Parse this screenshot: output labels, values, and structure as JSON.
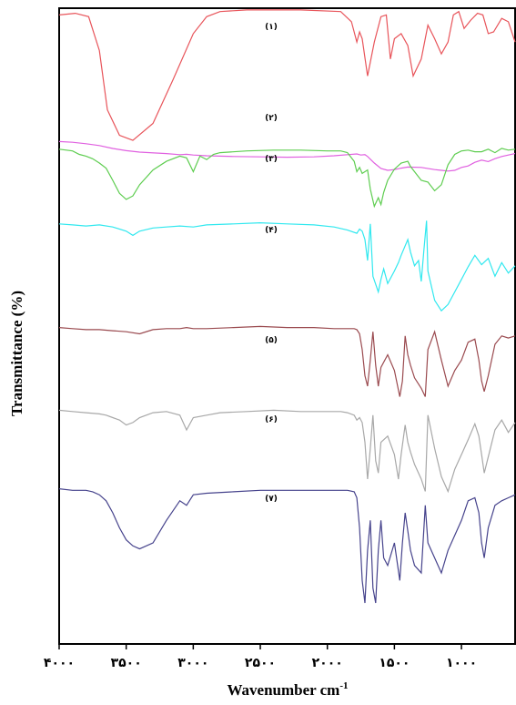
{
  "chart_data": {
    "type": "line",
    "title": "",
    "xlabel": "Wavenumber cm",
    "xlabel_sup": "-1",
    "ylabel": "Transmittance (%)",
    "xlim": [
      4000,
      600
    ],
    "x_reversed": true,
    "x_ticks": [
      {
        "value": 4000,
        "label": "۴۰۰۰"
      },
      {
        "value": 3500,
        "label": "۳۵۰۰"
      },
      {
        "value": 3000,
        "label": "۳۰۰۰"
      },
      {
        "value": 2500,
        "label": "۲۵۰۰"
      },
      {
        "value": 2000,
        "label": "۲۰۰۰"
      },
      {
        "value": 1500,
        "label": "۱۵۰۰"
      },
      {
        "value": 1000,
        "label": "۱۰۰۰"
      }
    ],
    "y_ticks_shown": false,
    "grid": false,
    "series": [
      {
        "name": "(۱)",
        "color": "#e8545a",
        "x": [
          4000,
          3880,
          3780,
          3700,
          3640,
          3550,
          3450,
          3300,
          3150,
          3000,
          2900,
          2800,
          2600,
          2200,
          1900,
          1820,
          1780,
          1760,
          1740,
          1700,
          1650,
          1600,
          1560,
          1530,
          1500,
          1450,
          1400,
          1360,
          1300,
          1250,
          1200,
          1150,
          1100,
          1060,
          1020,
          980,
          930,
          880,
          840,
          800,
          760,
          700,
          650,
          600
        ],
        "y": [
          96,
          97,
          95,
          75,
          40,
          25,
          22,
          32,
          58,
          85,
          95,
          98,
          99,
          99,
          98,
          92,
          80,
          86,
          82,
          60,
          80,
          95,
          96,
          70,
          82,
          85,
          78,
          60,
          70,
          90,
          82,
          73,
          80,
          96,
          98,
          88,
          93,
          97,
          96,
          85,
          86,
          94,
          92,
          80
        ]
      },
      {
        "name": "(۲)",
        "color": "#e060e0",
        "x": [
          4000,
          3900,
          3800,
          3700,
          3600,
          3500,
          3400,
          3200,
          3100,
          3050,
          3000,
          2900,
          2700,
          2500,
          2300,
          2100,
          1950,
          1850,
          1780,
          1750,
          1720,
          1700,
          1650,
          1600,
          1550,
          1500,
          1450,
          1400,
          1300,
          1200,
          1150,
          1100,
          1050,
          1000,
          950,
          900,
          850,
          800,
          750,
          700,
          650,
          600
        ],
        "y": [
          99,
          97,
          93,
          88,
          80,
          74,
          70,
          66,
          63,
          64,
          62,
          60,
          58,
          57,
          56,
          57,
          60,
          63,
          65,
          62,
          63,
          58,
          40,
          25,
          20,
          22,
          26,
          29,
          28,
          22,
          20,
          18,
          20,
          28,
          32,
          42,
          48,
          44,
          52,
          58,
          62,
          66
        ]
      },
      {
        "name": "(۳)",
        "color": "#5ecd50",
        "x": [
          4000,
          3900,
          3850,
          3800,
          3750,
          3700,
          3650,
          3600,
          3550,
          3500,
          3450,
          3400,
          3300,
          3200,
          3100,
          3050,
          3000,
          2950,
          2900,
          2850,
          2800,
          2600,
          2400,
          2200,
          2000,
          1900,
          1850,
          1800,
          1780,
          1760,
          1740,
          1700,
          1680,
          1650,
          1620,
          1600,
          1580,
          1550,
          1500,
          1450,
          1400,
          1380,
          1350,
          1300,
          1250,
          1200,
          1150,
          1100,
          1050,
          1000,
          950,
          900,
          850,
          800,
          750,
          700,
          650,
          600
        ],
        "y": [
          96,
          94,
          90,
          88,
          85,
          80,
          74,
          60,
          45,
          38,
          42,
          55,
          72,
          82,
          88,
          86,
          70,
          88,
          84,
          90,
          92,
          94,
          95,
          95,
          94,
          94,
          92,
          82,
          70,
          75,
          68,
          72,
          50,
          30,
          40,
          32,
          46,
          60,
          73,
          80,
          82,
          76,
          70,
          60,
          58,
          48,
          55,
          78,
          90,
          94,
          95,
          93,
          93,
          96,
          92,
          97,
          95,
          96
        ]
      },
      {
        "name": "(۴)",
        "color": "#30e8ef",
        "x": [
          4000,
          3900,
          3800,
          3700,
          3600,
          3500,
          3450,
          3400,
          3300,
          3200,
          3100,
          3000,
          2900,
          2700,
          2500,
          2300,
          2100,
          1950,
          1850,
          1780,
          1760,
          1740,
          1720,
          1700,
          1680,
          1660,
          1620,
          1600,
          1580,
          1550,
          1500,
          1470,
          1450,
          1400,
          1380,
          1350,
          1320,
          1300,
          1280,
          1260,
          1250,
          1200,
          1150,
          1100,
          1050,
          1000,
          950,
          900,
          850,
          800,
          750,
          700,
          650,
          600
        ],
        "y": [
          95,
          94,
          93,
          94,
          92,
          88,
          84,
          88,
          91,
          92,
          93,
          92,
          94,
          95,
          96,
          95,
          94,
          92,
          89,
          86,
          90,
          88,
          80,
          60,
          95,
          45,
          30,
          42,
          52,
          38,
          50,
          58,
          65,
          80,
          68,
          55,
          60,
          40,
          70,
          98,
          50,
          22,
          12,
          18,
          30,
          42,
          54,
          65,
          56,
          62,
          45,
          58,
          48,
          55
        ]
      },
      {
        "name": "(۵)",
        "color": "#9a4a4f",
        "x": [
          4000,
          3900,
          3800,
          3700,
          3600,
          3500,
          3400,
          3300,
          3200,
          3100,
          3050,
          3000,
          2900,
          2700,
          2500,
          2300,
          2100,
          1950,
          1850,
          1800,
          1780,
          1760,
          1740,
          1720,
          1700,
          1680,
          1660,
          1640,
          1620,
          1600,
          1550,
          1500,
          1460,
          1440,
          1420,
          1400,
          1380,
          1350,
          1300,
          1270,
          1250,
          1200,
          1150,
          1100,
          1050,
          1000,
          950,
          900,
          870,
          850,
          830,
          800,
          750,
          700,
          650,
          600
        ],
        "y": [
          96,
          95,
          94,
          94,
          93,
          92,
          90,
          94,
          95,
          95,
          96,
          95,
          95,
          96,
          97,
          96,
          96,
          95,
          95,
          95,
          94,
          90,
          75,
          50,
          40,
          65,
          92,
          60,
          40,
          58,
          70,
          55,
          30,
          45,
          88,
          70,
          60,
          48,
          38,
          30,
          75,
          92,
          65,
          40,
          55,
          65,
          82,
          85,
          65,
          45,
          35,
          50,
          80,
          88,
          86,
          88
        ]
      },
      {
        "name": "(۶)",
        "color": "#a8a8a8",
        "x": [
          4000,
          3900,
          3800,
          3700,
          3650,
          3600,
          3550,
          3500,
          3450,
          3400,
          3300,
          3200,
          3100,
          3050,
          3000,
          2900,
          2800,
          2600,
          2400,
          2200,
          2000,
          1900,
          1850,
          1800,
          1780,
          1760,
          1740,
          1720,
          1700,
          1680,
          1660,
          1640,
          1620,
          1600,
          1550,
          1500,
          1470,
          1450,
          1420,
          1400,
          1380,
          1350,
          1300,
          1270,
          1250,
          1200,
          1150,
          1100,
          1050,
          1000,
          950,
          900,
          870,
          850,
          830,
          800,
          750,
          700,
          650,
          600
        ],
        "y": [
          96,
          95,
          94,
          93,
          92,
          90,
          88,
          84,
          86,
          90,
          94,
          95,
          92,
          80,
          90,
          92,
          94,
          95,
          96,
          95,
          95,
          95,
          94,
          92,
          88,
          90,
          86,
          70,
          40,
          65,
          92,
          55,
          45,
          70,
          75,
          60,
          40,
          60,
          84,
          70,
          62,
          52,
          40,
          30,
          92,
          65,
          42,
          30,
          48,
          60,
          72,
          85,
          75,
          60,
          45,
          58,
          80,
          88,
          78,
          86
        ]
      },
      {
        "name": "(۷)",
        "color": "#46438c",
        "x": [
          4000,
          3900,
          3800,
          3750,
          3700,
          3650,
          3600,
          3550,
          3500,
          3450,
          3400,
          3300,
          3200,
          3100,
          3050,
          3000,
          2900,
          2700,
          2500,
          2300,
          2100,
          1950,
          1850,
          1800,
          1780,
          1760,
          1740,
          1720,
          1700,
          1680,
          1660,
          1640,
          1620,
          1600,
          1580,
          1550,
          1500,
          1460,
          1440,
          1420,
          1400,
          1380,
          1350,
          1300,
          1270,
          1250,
          1200,
          1150,
          1100,
          1050,
          1000,
          950,
          900,
          870,
          850,
          830,
          800,
          750,
          700,
          650,
          600
        ],
        "y": [
          96,
          95,
          95,
          94,
          92,
          88,
          80,
          70,
          62,
          58,
          56,
          60,
          75,
          88,
          85,
          92,
          93,
          94,
          95,
          95,
          95,
          95,
          95,
          94,
          90,
          70,
          35,
          20,
          55,
          75,
          30,
          20,
          55,
          75,
          50,
          45,
          60,
          35,
          60,
          80,
          68,
          55,
          45,
          40,
          85,
          60,
          50,
          40,
          55,
          65,
          75,
          88,
          90,
          80,
          60,
          50,
          70,
          85,
          88,
          90,
          92
        ]
      }
    ],
    "annotations": []
  }
}
